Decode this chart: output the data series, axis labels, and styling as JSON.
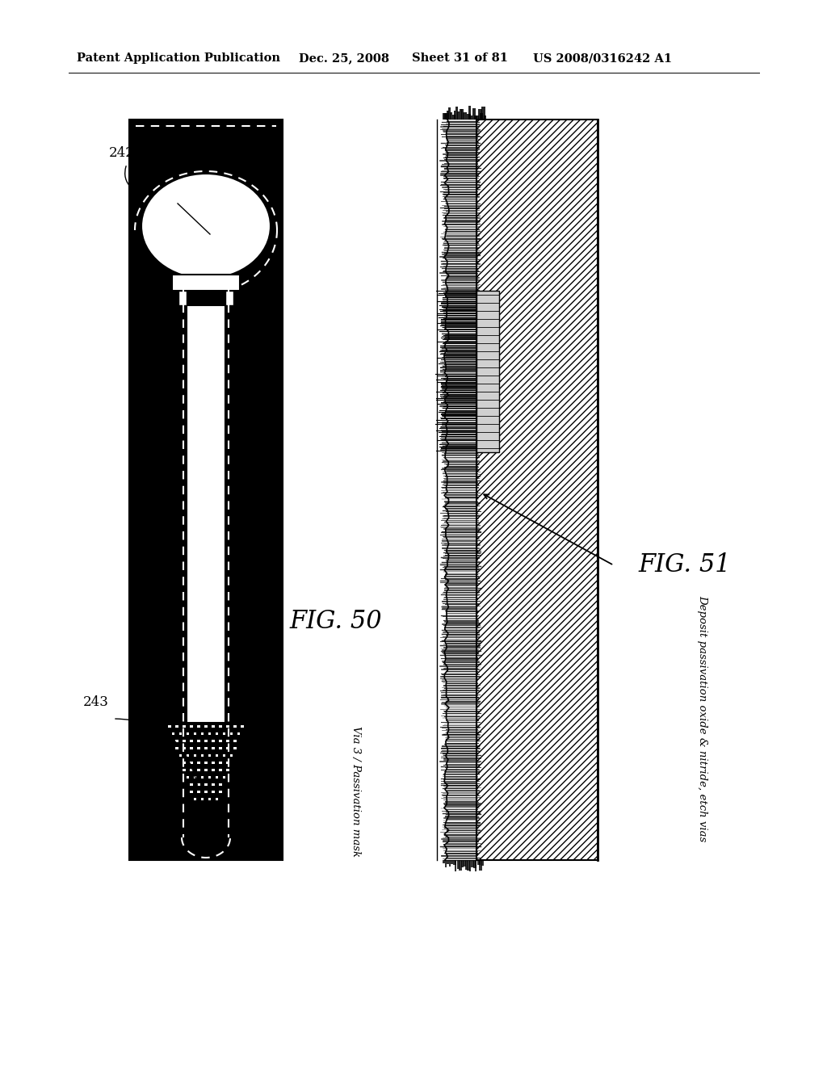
{
  "header_text": "Patent Application Publication",
  "header_date": "Dec. 25, 2008",
  "header_sheet": "Sheet 31 of 81",
  "header_patent": "US 2008/0316242 A1",
  "fig50_label": "FIG. 50",
  "fig51_label": "FIG. 51",
  "label_242": "242",
  "label_243": "243",
  "annotation_fig50": "Via 3 / Passivation mask",
  "annotation_fig51": "Deposit passivation oxide & nitride, etch vias",
  "bg_color": "#ffffff"
}
